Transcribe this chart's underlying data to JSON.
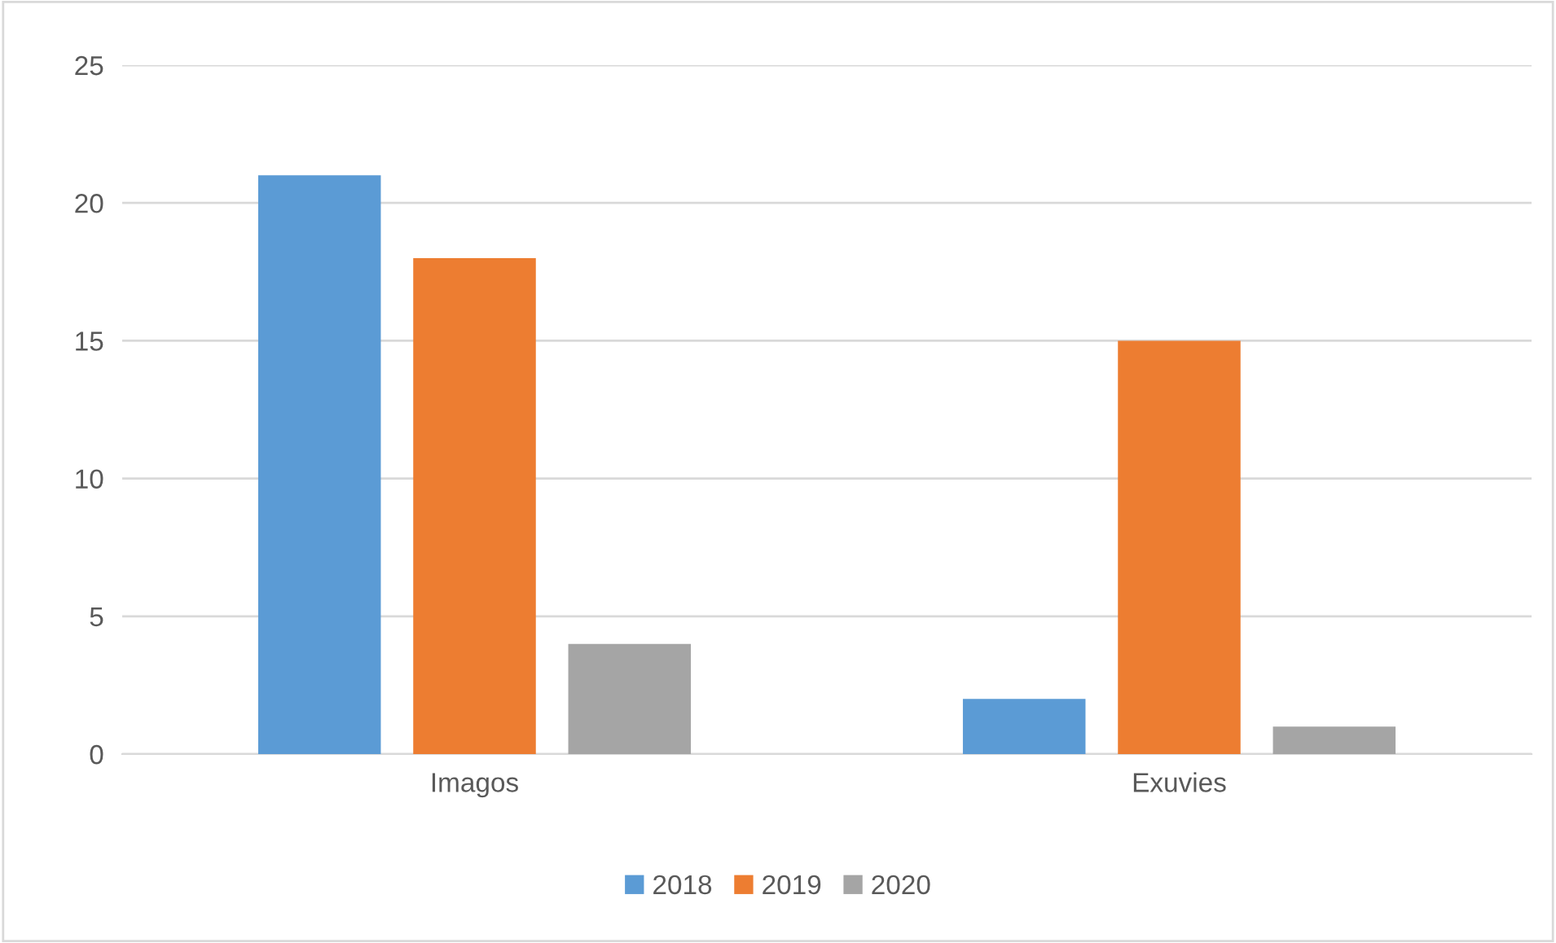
{
  "chart_data": {
    "type": "bar",
    "categories": [
      "Imagos",
      "Exuvies"
    ],
    "series": [
      {
        "name": "2018",
        "color": "#5b9bd5",
        "values": [
          21,
          2
        ]
      },
      {
        "name": "2019",
        "color": "#ed7d31",
        "values": [
          18,
          15
        ]
      },
      {
        "name": "2020",
        "color": "#a5a5a5",
        "values": [
          4,
          1
        ]
      }
    ],
    "ylim": [
      0,
      25
    ],
    "yticks": [
      0,
      5,
      10,
      15,
      20,
      25
    ],
    "grid": "y",
    "legend": "bottom"
  }
}
